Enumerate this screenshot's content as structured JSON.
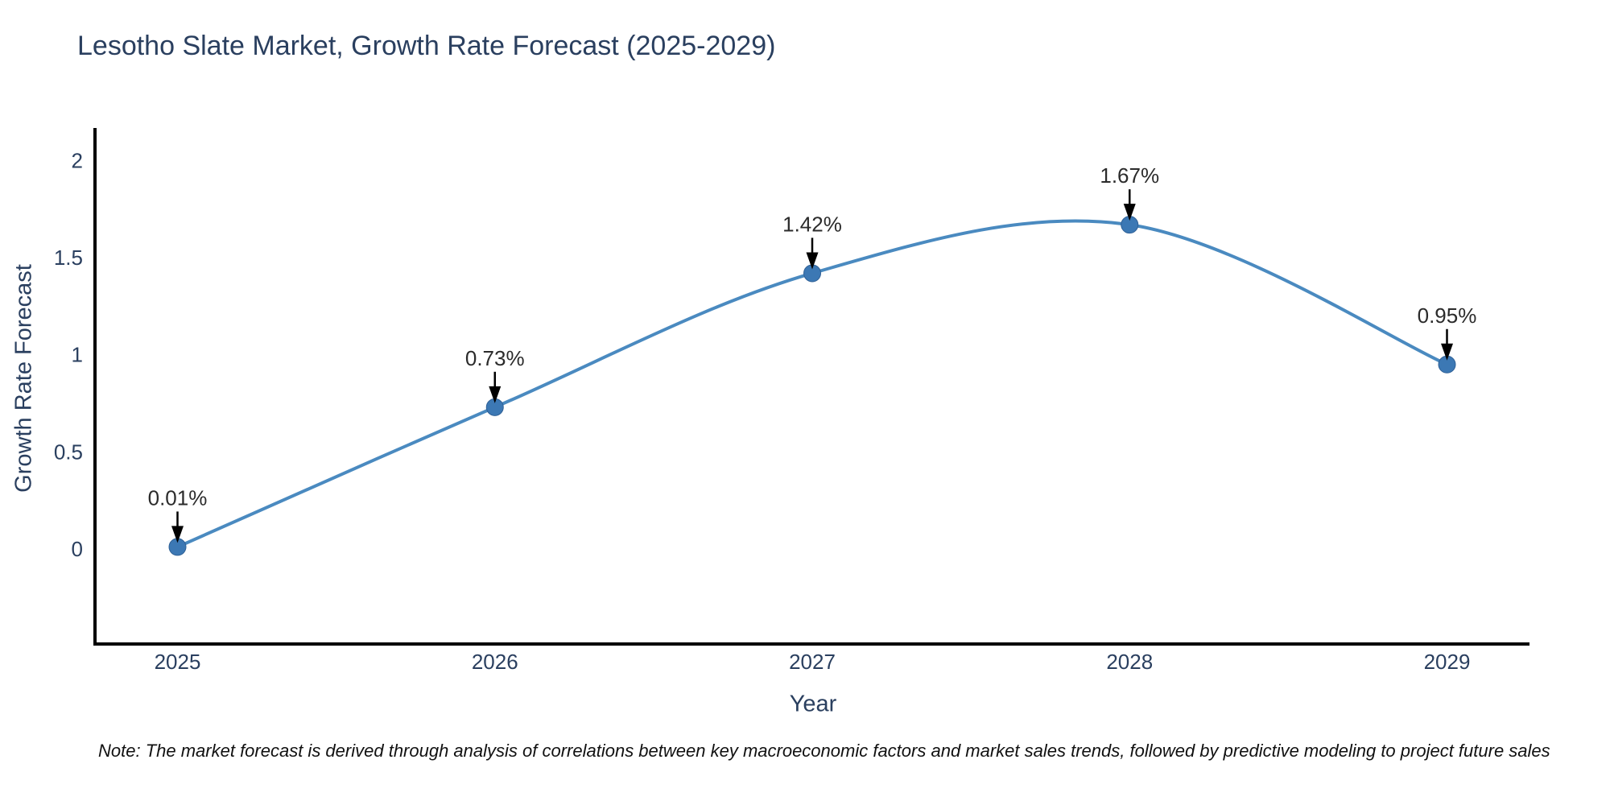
{
  "title": "Lesotho Slate Market, Growth Rate Forecast (2025-2029)",
  "note": "Note: The market forecast is derived through analysis of correlations between key macroeconomic factors and market sales trends, followed by predictive modeling to project future sales",
  "chart_data": {
    "type": "line",
    "title": "Lesotho Slate Market, Growth Rate Forecast (2025-2029)",
    "xlabel": "Year",
    "ylabel": "Growth Rate Forecast",
    "x": [
      2025,
      2026,
      2027,
      2028,
      2029
    ],
    "xtick_labels": [
      "2025",
      "2026",
      "2027",
      "2028",
      "2029"
    ],
    "values": [
      0.01,
      0.73,
      1.42,
      1.67,
      0.95
    ],
    "point_labels": [
      "0.01%",
      "0.73%",
      "1.42%",
      "1.67%",
      "0.95%"
    ],
    "yticks": [
      0,
      0.5,
      1,
      1.5,
      2
    ],
    "ytick_labels": [
      "0",
      "0.5",
      "1",
      "1.5",
      "2"
    ],
    "xlim": [
      2024.74,
      2029.26
    ],
    "ylim": [
      -0.49,
      2.16
    ],
    "grid": false,
    "legend": "none",
    "line_shape": "spline",
    "annotations_have_arrows": true,
    "colors": {
      "line": "#4a8ac0",
      "marker": "#3c78b4",
      "marker_edge": "#2f6096",
      "axis": "#000000",
      "axis_text": "#2a3f5f",
      "annotation_text": "#2b2b2b",
      "arrow": "#000000"
    }
  }
}
